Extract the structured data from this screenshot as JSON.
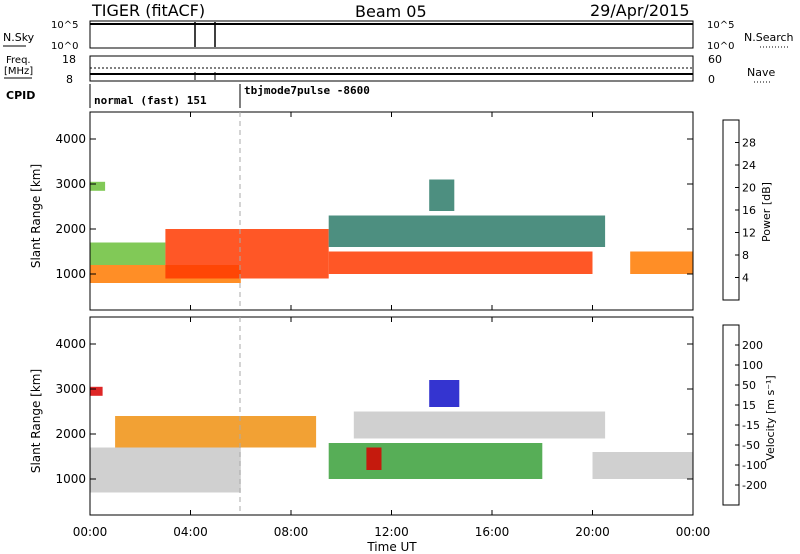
{
  "header": {
    "radar": "TIGER (fitACF)",
    "beam": "Beam 05",
    "date": "29/Apr/2015"
  },
  "noise_panel": {
    "left_label": "N.Sky",
    "right_label": "N.Search",
    "left_ticks": [
      "10^5",
      "10^0"
    ],
    "right_ticks": [
      "10^5",
      "10^0"
    ]
  },
  "freq_panel": {
    "left_label_line1": "Freq.",
    "left_label_line2": "[MHz]",
    "right_label": "Nave",
    "left_ticks": [
      "18",
      "8"
    ],
    "right_ticks": [
      "60",
      "0"
    ]
  },
  "cpid_panel": {
    "label": "CPID",
    "segments": [
      {
        "text": "normal (fast) 151",
        "start_hour": 0.0,
        "end_hour": 6.0
      },
      {
        "text": "tbjmode7pulse -8600",
        "start_hour": 6.0,
        "end_hour": 24.0
      }
    ]
  },
  "power_panel": {
    "ylabel": "Slant Range [km]",
    "yticks": [
      1000,
      2000,
      3000,
      4000
    ],
    "ylim": [
      200,
      4600
    ],
    "colorbar": {
      "label": "Power [dB]",
      "ticks": [
        "4",
        "8",
        "12",
        "16",
        "20",
        "24",
        "28"
      ],
      "colors": [
        "#0a1bd8",
        "#234aa8",
        "#2e7b6a",
        "#3aa04a",
        "#6bbf3a",
        "#c8c820",
        "#ffb000",
        "#ff7a00",
        "#ff3a00",
        "#e80000"
      ]
    }
  },
  "velocity_panel": {
    "ylabel": "Slant Range [km]",
    "yticks": [
      1000,
      2000,
      3000,
      4000
    ],
    "ylim": [
      200,
      4600
    ],
    "colorbar": {
      "label": "Velocity [m s⁻¹]",
      "ticks": [
        "200",
        "100",
        "50",
        "15",
        "-15",
        "-50",
        "-100",
        "-200"
      ],
      "colors": [
        "#1010c8",
        "#2a44c0",
        "#2e8a8a",
        "#3aa03a",
        "#80d040",
        "#c8c8c8",
        "#e8c020",
        "#f09010",
        "#f05010",
        "#d80000"
      ]
    }
  },
  "time_axis": {
    "xlabel": "Time UT",
    "ticks": [
      "00:00",
      "04:00",
      "08:00",
      "12:00",
      "16:00",
      "20:00",
      "00:00"
    ],
    "tick_hours": [
      0,
      4,
      8,
      12,
      16,
      20,
      24
    ]
  },
  "chart_data": [
    {
      "type": "heatmap",
      "title": "Power",
      "quantity": "Power [dB]",
      "x_range_hours": [
        0,
        24
      ],
      "ylim_km": [
        200,
        4600
      ],
      "regions": [
        {
          "t0": 0.0,
          "t1": 6.0,
          "r0": 800,
          "r1": 1200,
          "value": 22
        },
        {
          "t0": 0.0,
          "t1": 3.0,
          "r0": 1200,
          "r1": 1700,
          "value": 13
        },
        {
          "t0": 3.0,
          "t1": 9.5,
          "r0": 900,
          "r1": 2000,
          "value": 24
        },
        {
          "t0": 9.5,
          "t1": 20.0,
          "r0": 1000,
          "r1": 1500,
          "value": 26
        },
        {
          "t0": 9.5,
          "t1": 20.5,
          "r0": 1600,
          "r1": 2300,
          "value": 7
        },
        {
          "t0": 13.5,
          "t1": 14.5,
          "r0": 2400,
          "r1": 3100,
          "value": 6
        },
        {
          "t0": 21.5,
          "t1": 24.0,
          "r0": 1000,
          "r1": 1500,
          "value": 21
        },
        {
          "t0": 0.0,
          "t1": 0.6,
          "r0": 2850,
          "r1": 3050,
          "value": 12
        }
      ]
    },
    {
      "type": "heatmap",
      "title": "Velocity",
      "quantity": "Velocity [m s⁻¹]",
      "x_range_hours": [
        0,
        24
      ],
      "ylim_km": [
        200,
        4600
      ],
      "regions": [
        {
          "t0": 0.0,
          "t1": 6.0,
          "r0": 700,
          "r1": 1700,
          "value": 0
        },
        {
          "t0": 1.0,
          "t1": 9.0,
          "r0": 1700,
          "r1": 2400,
          "value": -40
        },
        {
          "t0": 9.5,
          "t1": 18.0,
          "r0": 1000,
          "r1": 1800,
          "value": 40
        },
        {
          "t0": 10.5,
          "t1": 20.5,
          "r0": 1900,
          "r1": 2500,
          "value": 0
        },
        {
          "t0": 13.5,
          "t1": 14.7,
          "r0": 2600,
          "r1": 3200,
          "value": 200
        },
        {
          "t0": 11.0,
          "t1": 11.6,
          "r0": 1200,
          "r1": 1700,
          "value": -200
        },
        {
          "t0": 20.0,
          "t1": 24.0,
          "r0": 1000,
          "r1": 1600,
          "value": 0
        },
        {
          "t0": 0.0,
          "t1": 0.5,
          "r0": 2850,
          "r1": 3050,
          "value": -200
        }
      ]
    }
  ]
}
